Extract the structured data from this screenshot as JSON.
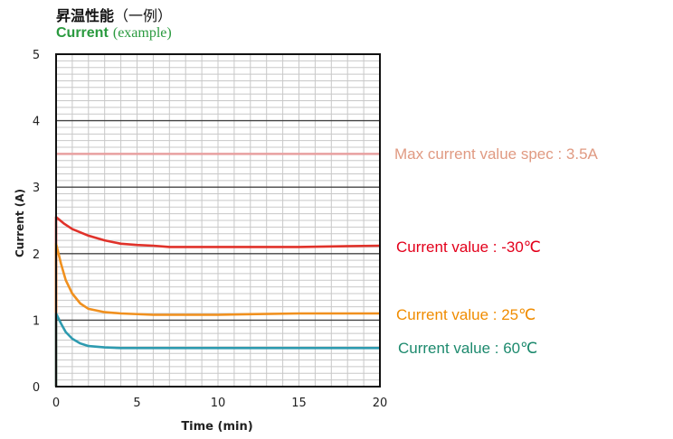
{
  "header": {
    "title": "昇温性能",
    "title_note": "（一例）",
    "subtitle_main": "Current",
    "subtitle_note": "(example)"
  },
  "chart_data": {
    "type": "line",
    "xlabel": "Time (min)",
    "ylabel": "Current (A)",
    "xlim": [
      0,
      20
    ],
    "ylim": [
      0,
      5
    ],
    "x_ticks": [
      "0",
      "5",
      "10",
      "15",
      "20"
    ],
    "y_ticks": [
      "0",
      "1",
      "2",
      "3",
      "4",
      "5"
    ],
    "grid": true,
    "series": [
      {
        "name": "Current value : -30℃",
        "color": "#e0322a",
        "points": [
          [
            0,
            2.55
          ],
          [
            0.5,
            2.45
          ],
          [
            1,
            2.37
          ],
          [
            2,
            2.27
          ],
          [
            3,
            2.2
          ],
          [
            4,
            2.15
          ],
          [
            5,
            2.13
          ],
          [
            6,
            2.12
          ],
          [
            7,
            2.1
          ],
          [
            10,
            2.1
          ],
          [
            15,
            2.1
          ],
          [
            20,
            2.12
          ]
        ]
      },
      {
        "name": "Current value : 25℃",
        "color": "#f0901e",
        "points": [
          [
            0,
            2.15
          ],
          [
            0.3,
            1.85
          ],
          [
            0.6,
            1.6
          ],
          [
            1,
            1.4
          ],
          [
            1.5,
            1.25
          ],
          [
            2,
            1.17
          ],
          [
            3,
            1.12
          ],
          [
            4,
            1.1
          ],
          [
            6,
            1.08
          ],
          [
            10,
            1.08
          ],
          [
            12,
            1.09
          ],
          [
            15,
            1.1
          ],
          [
            20,
            1.1
          ]
        ]
      },
      {
        "name": "Current value : 60℃",
        "color": "#2e9bb0",
        "points": [
          [
            0,
            1.1
          ],
          [
            0.3,
            0.95
          ],
          [
            0.6,
            0.82
          ],
          [
            1,
            0.72
          ],
          [
            1.5,
            0.65
          ],
          [
            2,
            0.61
          ],
          [
            3,
            0.59
          ],
          [
            4,
            0.58
          ],
          [
            6,
            0.58
          ],
          [
            20,
            0.58
          ]
        ]
      }
    ],
    "reference_line": {
      "name": "Max current value spec : 3.5A",
      "value": 3.5,
      "color": "#e8a0a0"
    },
    "annotations": [
      {
        "text": "Max current value spec : 3.5A",
        "color": "#e09a82"
      },
      {
        "text": "Current value : -30℃",
        "color": "#e3001b"
      },
      {
        "text": "Current value : 25℃",
        "color": "#f08c00"
      },
      {
        "text": "Current value : 60℃",
        "color": "#1d8a6e"
      }
    ]
  }
}
